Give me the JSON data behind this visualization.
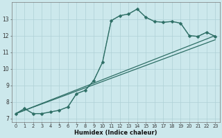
{
  "title": "",
  "xlabel": "Humidex (Indice chaleur)",
  "bg_color": "#cce8ec",
  "grid_color": "#aed0d6",
  "line_color": "#2d6e65",
  "xlim": [
    -0.5,
    23.5
  ],
  "ylim": [
    6.8,
    14.0
  ],
  "yticks": [
    7,
    8,
    9,
    10,
    11,
    12,
    13
  ],
  "xticks": [
    0,
    1,
    2,
    3,
    4,
    5,
    6,
    7,
    8,
    9,
    10,
    11,
    12,
    13,
    14,
    15,
    16,
    17,
    18,
    19,
    20,
    21,
    22,
    23
  ],
  "series_main": {
    "x": [
      0,
      1,
      2,
      3,
      4,
      5,
      6,
      7,
      8,
      9,
      10,
      11,
      12,
      13,
      14,
      15,
      16,
      17,
      18,
      19,
      20,
      21,
      22,
      23
    ],
    "y": [
      7.3,
      7.6,
      7.3,
      7.3,
      7.4,
      7.5,
      7.7,
      8.5,
      8.7,
      9.3,
      10.4,
      12.9,
      13.2,
      13.3,
      13.6,
      13.1,
      12.85,
      12.8,
      12.85,
      12.75,
      12.0,
      11.95,
      12.2,
      11.95
    ]
  },
  "series_dotted": {
    "x": [
      0,
      1,
      2,
      3,
      4,
      5,
      6,
      7,
      8,
      9,
      10,
      11,
      12,
      13,
      14,
      15,
      16,
      17,
      18,
      19,
      20,
      21,
      22,
      23
    ],
    "y": [
      7.3,
      7.6,
      7.3,
      7.3,
      7.4,
      7.5,
      7.7,
      8.5,
      8.7,
      9.3,
      10.4,
      12.9,
      13.2,
      13.3,
      13.6,
      13.1,
      12.85,
      12.8,
      12.85,
      12.75,
      12.0,
      11.95,
      12.2,
      11.95
    ]
  },
  "line1_x": [
    0,
    23
  ],
  "line1_y": [
    7.3,
    12.0
  ],
  "line2_x": [
    0,
    23
  ],
  "line2_y": [
    7.3,
    11.75
  ]
}
